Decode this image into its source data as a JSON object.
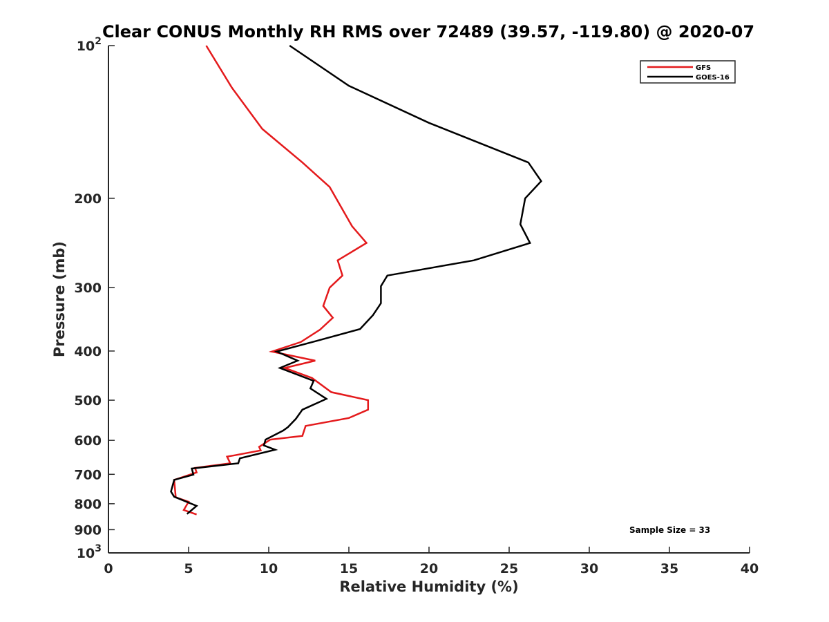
{
  "chart_data": {
    "type": "line",
    "title": "Clear CONUS Monthly RH RMS over 72489 (39.57, -119.80) @ 2020-07",
    "xlabel": "Relative Humidity (%)",
    "ylabel": "Pressure (mb)",
    "xlim": [
      0,
      40
    ],
    "ylim": [
      100,
      1000
    ],
    "yscale": "log",
    "y_reversed": true,
    "grid": false,
    "legend_position": "top-right",
    "x_ticks": [
      0,
      5,
      10,
      15,
      20,
      25,
      30,
      35,
      40
    ],
    "x_tick_labels": [
      "0",
      "5",
      "10",
      "15",
      "20",
      "25",
      "30",
      "35",
      "40"
    ],
    "y_ticks": [
      100,
      200,
      300,
      400,
      500,
      600,
      700,
      800,
      900,
      1000
    ],
    "y_tick_labels": [
      {
        "base": "10",
        "exp": "2"
      },
      {
        "base": "200",
        "exp": ""
      },
      {
        "base": "300",
        "exp": ""
      },
      {
        "base": "400",
        "exp": ""
      },
      {
        "base": "500",
        "exp": ""
      },
      {
        "base": "600",
        "exp": ""
      },
      {
        "base": "700",
        "exp": ""
      },
      {
        "base": "800",
        "exp": ""
      },
      {
        "base": "900",
        "exp": ""
      },
      {
        "base": "10",
        "exp": "3"
      }
    ],
    "series": [
      {
        "name": "GFS",
        "color": "#e41a1c",
        "points": [
          {
            "x": 6.1,
            "y": 100
          },
          {
            "x": 7.7,
            "y": 121
          },
          {
            "x": 9.6,
            "y": 146
          },
          {
            "x": 12.1,
            "y": 170
          },
          {
            "x": 13.8,
            "y": 190
          },
          {
            "x": 15.2,
            "y": 227
          },
          {
            "x": 16.1,
            "y": 245
          },
          {
            "x": 14.3,
            "y": 265
          },
          {
            "x": 14.6,
            "y": 284
          },
          {
            "x": 13.8,
            "y": 300
          },
          {
            "x": 13.4,
            "y": 326
          },
          {
            "x": 14.0,
            "y": 344
          },
          {
            "x": 13.2,
            "y": 363
          },
          {
            "x": 12.0,
            "y": 384
          },
          {
            "x": 10.2,
            "y": 401
          },
          {
            "x": 12.9,
            "y": 418
          },
          {
            "x": 11.0,
            "y": 432
          },
          {
            "x": 12.7,
            "y": 452
          },
          {
            "x": 13.9,
            "y": 482
          },
          {
            "x": 16.2,
            "y": 500
          },
          {
            "x": 16.2,
            "y": 522
          },
          {
            "x": 15.0,
            "y": 542
          },
          {
            "x": 12.3,
            "y": 562
          },
          {
            "x": 12.1,
            "y": 588
          },
          {
            "x": 10.1,
            "y": 598
          },
          {
            "x": 9.4,
            "y": 618
          },
          {
            "x": 9.5,
            "y": 628
          },
          {
            "x": 7.9,
            "y": 642
          },
          {
            "x": 7.4,
            "y": 646
          },
          {
            "x": 7.6,
            "y": 666
          },
          {
            "x": 5.4,
            "y": 680
          },
          {
            "x": 5.5,
            "y": 694
          },
          {
            "x": 4.1,
            "y": 718
          },
          {
            "x": 4.2,
            "y": 777
          },
          {
            "x": 5.0,
            "y": 793
          },
          {
            "x": 4.7,
            "y": 823
          },
          {
            "x": 5.5,
            "y": 840
          }
        ]
      },
      {
        "name": "GOES-16",
        "color": "#000000",
        "points": [
          {
            "x": 11.3,
            "y": 100
          },
          {
            "x": 15.0,
            "y": 120
          },
          {
            "x": 20.0,
            "y": 142
          },
          {
            "x": 26.2,
            "y": 170
          },
          {
            "x": 27.0,
            "y": 185
          },
          {
            "x": 26.0,
            "y": 200
          },
          {
            "x": 25.7,
            "y": 225
          },
          {
            "x": 26.3,
            "y": 245
          },
          {
            "x": 22.8,
            "y": 265
          },
          {
            "x": 17.4,
            "y": 284
          },
          {
            "x": 17.0,
            "y": 298
          },
          {
            "x": 17.0,
            "y": 322
          },
          {
            "x": 16.5,
            "y": 340
          },
          {
            "x": 15.7,
            "y": 362
          },
          {
            "x": 13.0,
            "y": 382
          },
          {
            "x": 10.5,
            "y": 401
          },
          {
            "x": 11.8,
            "y": 418
          },
          {
            "x": 10.7,
            "y": 432
          },
          {
            "x": 12.8,
            "y": 458
          },
          {
            "x": 12.6,
            "y": 474
          },
          {
            "x": 13.6,
            "y": 497
          },
          {
            "x": 12.1,
            "y": 522
          },
          {
            "x": 11.7,
            "y": 544
          },
          {
            "x": 11.2,
            "y": 565
          },
          {
            "x": 10.9,
            "y": 574
          },
          {
            "x": 9.8,
            "y": 598
          },
          {
            "x": 9.7,
            "y": 614
          },
          {
            "x": 10.4,
            "y": 626
          },
          {
            "x": 8.2,
            "y": 651
          },
          {
            "x": 8.1,
            "y": 666
          },
          {
            "x": 5.2,
            "y": 682
          },
          {
            "x": 5.3,
            "y": 701
          },
          {
            "x": 4.1,
            "y": 718
          },
          {
            "x": 3.9,
            "y": 757
          },
          {
            "x": 4.1,
            "y": 775
          },
          {
            "x": 5.5,
            "y": 808
          },
          {
            "x": 4.9,
            "y": 838
          }
        ]
      }
    ],
    "legend": [
      {
        "name": "GFS",
        "color": "#e41a1c"
      },
      {
        "name": "GOES-16",
        "color": "#000000"
      }
    ],
    "annotations": [
      {
        "text": "Sample Size = 33",
        "position": "bottom-right"
      }
    ]
  }
}
